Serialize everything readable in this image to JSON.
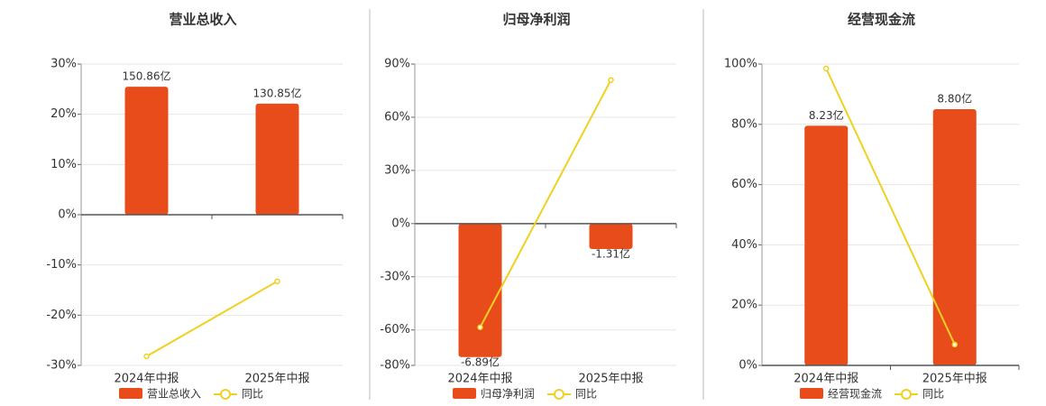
{
  "chart_data": [
    {
      "type": "bar",
      "title": "营业总收入",
      "categories": [
        "2024年中报",
        "2025年中报"
      ],
      "ylim": [
        -30,
        30
      ],
      "yticks": [
        {
          "value": 30,
          "label": "30%"
        },
        {
          "value": 20,
          "label": "20%"
        },
        {
          "value": 10,
          "label": "10%"
        },
        {
          "value": 0,
          "label": "0%"
        },
        {
          "value": -10,
          "label": "-10%"
        },
        {
          "value": -20,
          "label": "-20%"
        },
        {
          "value": -30,
          "label": "-30%"
        }
      ],
      "y2lim": [
        -177.5,
        177.5
      ],
      "grid": true,
      "series": [
        {
          "name": "营业总收入",
          "type": "bar",
          "axis": "y2",
          "color": "#e84c1b",
          "values": [
            150.86,
            130.85
          ],
          "value_labels": [
            "150.86亿",
            "130.85亿"
          ]
        },
        {
          "name": "同比",
          "type": "line",
          "color": "#f0d020",
          "values": [
            -28.2,
            -13.26
          ]
        }
      ]
    },
    {
      "type": "bar",
      "title": "归母净利润",
      "categories": [
        "2024年中报",
        "2025年中报"
      ],
      "ylim": [
        -80,
        90
      ],
      "yticks": [
        {
          "value": 90,
          "label": "90%"
        },
        {
          "value": 60,
          "label": "60%"
        },
        {
          "value": 30,
          "label": "30%"
        },
        {
          "value": 0,
          "label": "0%"
        },
        {
          "value": -30,
          "label": "-30%"
        },
        {
          "value": -60,
          "label": "-60%"
        },
        {
          "value": -80,
          "label": "-80%"
        }
      ],
      "y2lim": [
        -7.32,
        8.24
      ],
      "grid": true,
      "series": [
        {
          "name": "归母净利润",
          "type": "bar",
          "axis": "y2",
          "color": "#e84c1b",
          "values": [
            -6.89,
            -1.31
          ],
          "value_labels": [
            "-6.89亿",
            "-1.31亿"
          ]
        },
        {
          "name": "同比",
          "type": "line",
          "color": "#f0d020",
          "values": [
            -58.5,
            80.99
          ]
        }
      ]
    },
    {
      "type": "bar",
      "title": "经营现金流",
      "categories": [
        "2024年中报",
        "2025年中报"
      ],
      "ylim": [
        0,
        100
      ],
      "yticks": [
        {
          "value": 100,
          "label": "100%"
        },
        {
          "value": 80,
          "label": "80%"
        },
        {
          "value": 60,
          "label": "60%"
        },
        {
          "value": 40,
          "label": "40%"
        },
        {
          "value": 20,
          "label": "20%"
        },
        {
          "value": 0,
          "label": "0%"
        }
      ],
      "y2lim": [
        0,
        10.35
      ],
      "grid": true,
      "series": [
        {
          "name": "经营现金流",
          "type": "bar",
          "axis": "y2",
          "color": "#e84c1b",
          "values": [
            8.23,
            8.8
          ],
          "value_labels": [
            "8.23亿",
            "8.80亿"
          ]
        },
        {
          "name": "同比",
          "type": "line",
          "color": "#f0d020",
          "values": [
            98.5,
            6.93
          ]
        }
      ]
    }
  ]
}
